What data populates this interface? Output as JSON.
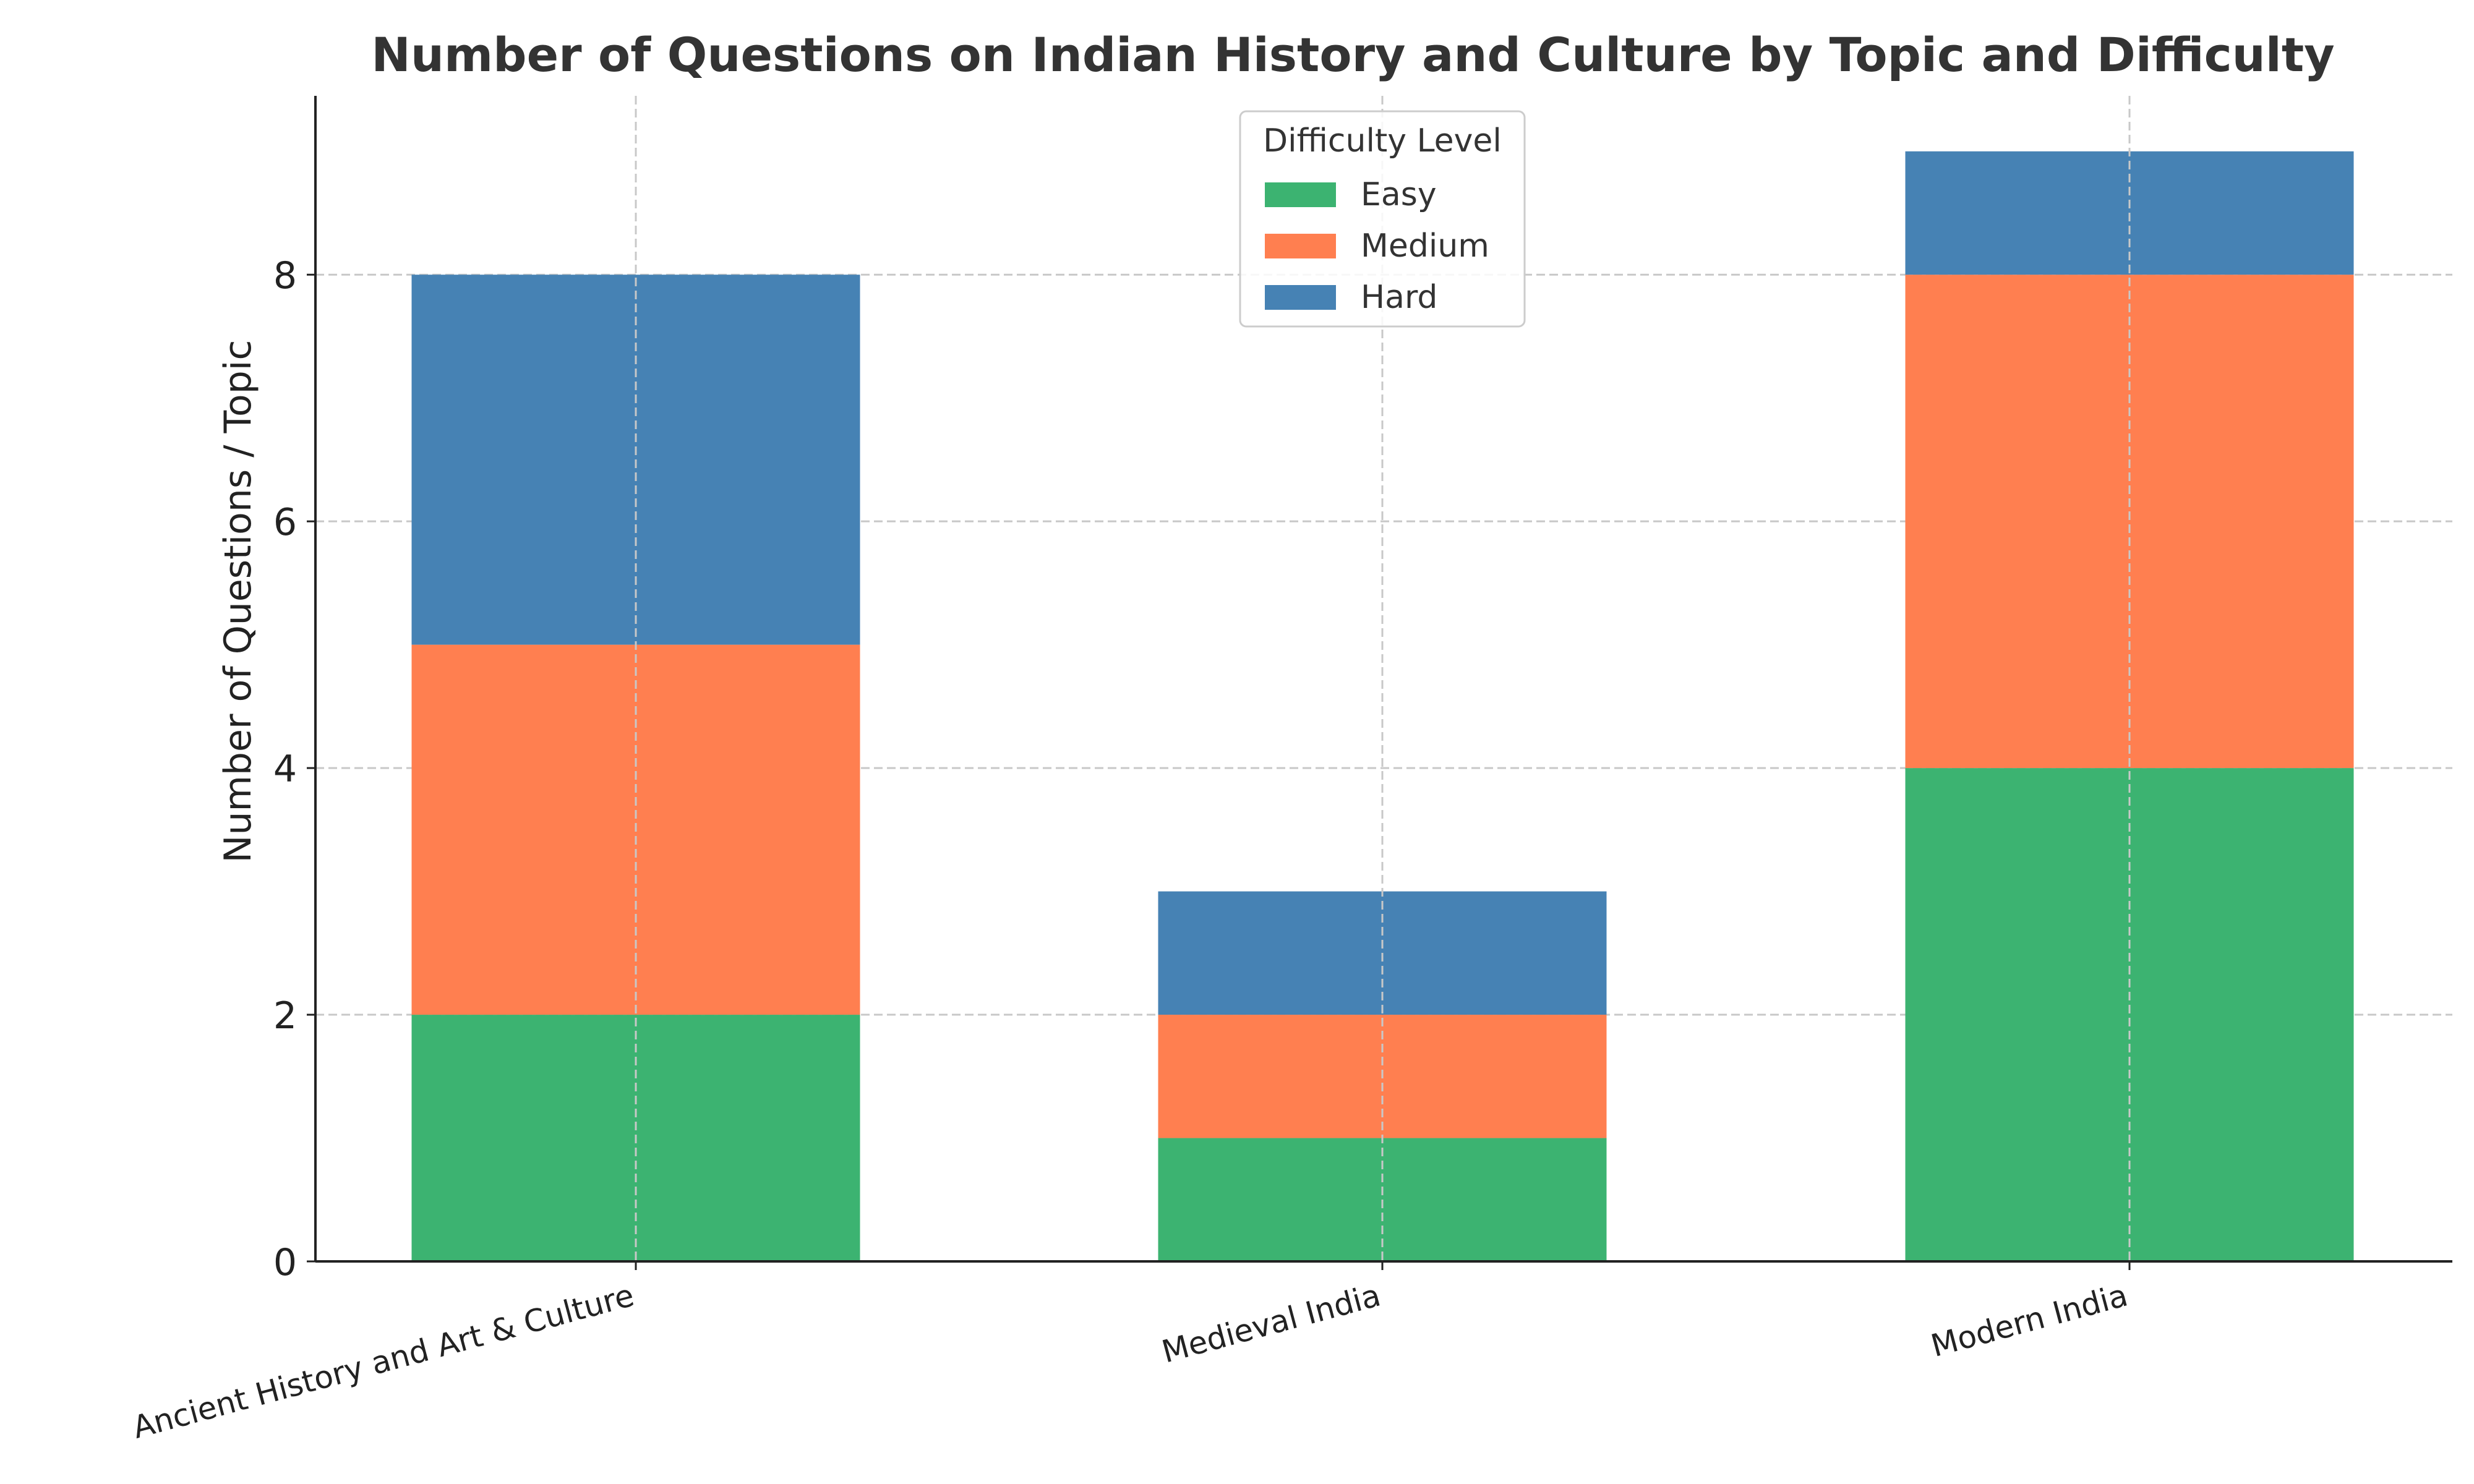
{
  "chart_data": {
    "type": "bar",
    "stacked": true,
    "title": "Number of Questions on Indian History and Culture by Topic and Difficulty",
    "xlabel": "",
    "ylabel": "Number of Questions / Topic",
    "categories": [
      "Ancient History and Art & Culture",
      "Medieval India",
      "Modern India"
    ],
    "series": [
      {
        "name": "Easy",
        "values": [
          2,
          1,
          4
        ],
        "color": "#3cb371"
      },
      {
        "name": "Medium",
        "values": [
          3,
          1,
          4
        ],
        "color": "#ff7f50"
      },
      {
        "name": "Hard",
        "values": [
          3,
          1,
          1
        ],
        "color": "#4682b4"
      }
    ],
    "ylim": [
      0,
      9.45
    ],
    "yticks": [
      0,
      2,
      4,
      6,
      8
    ],
    "grid": true,
    "legend": {
      "title": "Difficulty Level",
      "placement": "top-center"
    }
  }
}
